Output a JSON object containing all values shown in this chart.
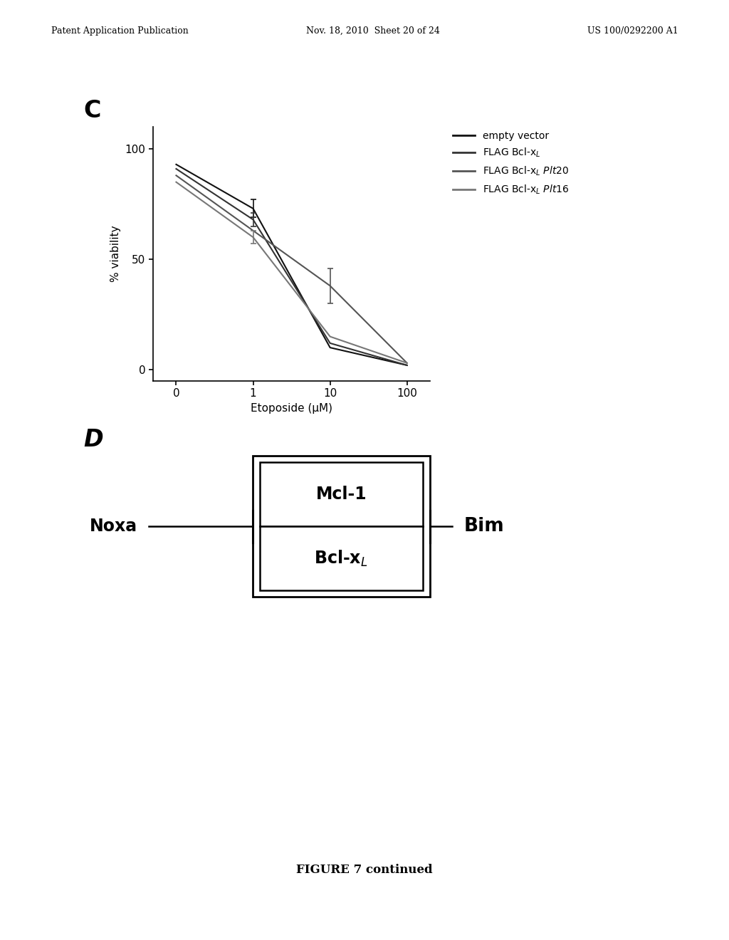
{
  "header_left": "Patent Application Publication",
  "header_mid": "Nov. 18, 2010  Sheet 20 of 24",
  "header_right": "US 100/0292200 A1",
  "panel_c_label": "C",
  "panel_d_label": "D",
  "figure_caption": "FIGURE 7 continued",
  "xlabel": "Etoposide (μM)",
  "ylabel": "% viability",
  "xtick_labels": [
    "0",
    "1",
    "10",
    "100"
  ],
  "xtick_positions": [
    0,
    1,
    2,
    3
  ],
  "ytick_labels": [
    "0",
    "50",
    "100"
  ],
  "ytick_positions": [
    0,
    50,
    100
  ],
  "ylim": [
    -5,
    110
  ],
  "lines": [
    {
      "name": "empty vector",
      "x": [
        0,
        1,
        2,
        3
      ],
      "y": [
        93,
        73,
        10,
        2
      ],
      "yerr": [
        0,
        4,
        0,
        0
      ],
      "color": "#111111",
      "linewidth": 1.5,
      "linestyle": "-"
    },
    {
      "name": "FLAG Bcl-x$_L$",
      "x": [
        0,
        1,
        2,
        3
      ],
      "y": [
        91,
        68,
        12,
        2
      ],
      "yerr": [
        0,
        3,
        0,
        0
      ],
      "color": "#333333",
      "linewidth": 1.5,
      "linestyle": "-"
    },
    {
      "name": "FLAG Bcl-x$_L$ $\\it{Plt20}$",
      "x": [
        0,
        1,
        2,
        3
      ],
      "y": [
        88,
        63,
        38,
        3
      ],
      "yerr": [
        0,
        0,
        8,
        0
      ],
      "color": "#555555",
      "linewidth": 1.5,
      "linestyle": "-"
    },
    {
      "name": "FLAG Bcl-x$_L$ $\\it{Plt16}$",
      "x": [
        0,
        1,
        2,
        3
      ],
      "y": [
        85,
        60,
        15,
        3
      ],
      "yerr": [
        0,
        3,
        0,
        0
      ],
      "color": "#777777",
      "linewidth": 1.5,
      "linestyle": "-"
    }
  ],
  "bg_color": "#ffffff",
  "diag_noxa": "Noxa",
  "diag_mcl1": "Mcl-1",
  "diag_bclxl": "Bcl-x$_L$",
  "diag_bim": "Bim"
}
